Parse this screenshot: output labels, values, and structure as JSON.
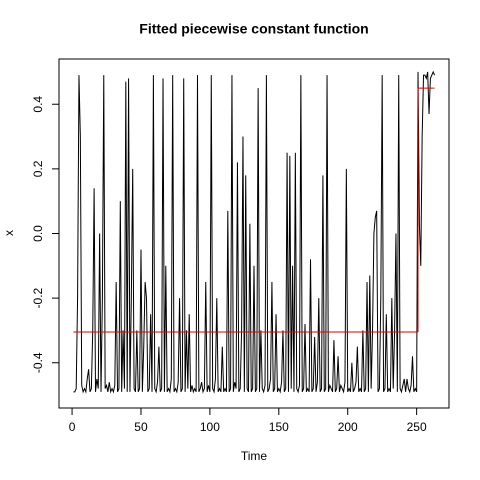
{
  "chart_data": {
    "type": "line",
    "title": "Fitted piecewise constant function",
    "xlabel": "Time",
    "ylabel": "x",
    "x": [
      1,
      2,
      3,
      4,
      5,
      6,
      7,
      8,
      9,
      10,
      11,
      12,
      13,
      14,
      15,
      16,
      17,
      18,
      19,
      20,
      21,
      22,
      23,
      24,
      25,
      26,
      27,
      28,
      29,
      30,
      31,
      32,
      33,
      34,
      35,
      36,
      37,
      38,
      39,
      40,
      41,
      42,
      43,
      44,
      45,
      46,
      47,
      48,
      49,
      50,
      51,
      52,
      53,
      54,
      55,
      56,
      57,
      58,
      59,
      60,
      61,
      62,
      63,
      64,
      65,
      66,
      67,
      68,
      69,
      70,
      71,
      72,
      73,
      74,
      75,
      76,
      77,
      78,
      79,
      80,
      81,
      82,
      83,
      84,
      85,
      86,
      87,
      88,
      89,
      90,
      91,
      92,
      93,
      94,
      95,
      96,
      97,
      98,
      99,
      100,
      101,
      102,
      103,
      104,
      105,
      106,
      107,
      108,
      109,
      110,
      111,
      112,
      113,
      114,
      115,
      116,
      117,
      118,
      119,
      120,
      121,
      122,
      123,
      124,
      125,
      126,
      127,
      128,
      129,
      130,
      131,
      132,
      133,
      134,
      135,
      136,
      137,
      138,
      139,
      140,
      141,
      142,
      143,
      144,
      145,
      146,
      147,
      148,
      149,
      150,
      151,
      152,
      153,
      154,
      155,
      156,
      157,
      158,
      159,
      160,
      161,
      162,
      163,
      164,
      165,
      166,
      167,
      168,
      169,
      170,
      171,
      172,
      173,
      174,
      175,
      176,
      177,
      178,
      179,
      180,
      181,
      182,
      183,
      184,
      185,
      186,
      187,
      188,
      189,
      190,
      191,
      192,
      193,
      194,
      195,
      196,
      197,
      198,
      199,
      200,
      201,
      202,
      203,
      204,
      205,
      206,
      207,
      208,
      209,
      210,
      211,
      212,
      213,
      214,
      215,
      216,
      217,
      218,
      219,
      220,
      221,
      222,
      223,
      224,
      225,
      226,
      227,
      228,
      229,
      230,
      231,
      232,
      233,
      234,
      235,
      236,
      237,
      238,
      239,
      240,
      241,
      242,
      243,
      244,
      245,
      246,
      247,
      248,
      249,
      250,
      251,
      252,
      253,
      254,
      255,
      256,
      257,
      258,
      259,
      260,
      261,
      262,
      263
    ],
    "series": [
      {
        "color": "#000000",
        "values": [
          -0.49,
          -0.49,
          -0.48,
          -0.2,
          0.49,
          0.3,
          -0.47,
          -0.49,
          -0.48,
          -0.49,
          -0.45,
          -0.42,
          -0.49,
          -0.48,
          -0.3,
          0.14,
          -0.49,
          -0.45,
          -0.48,
          0.0,
          -0.49,
          -0.2,
          0.49,
          -0.48,
          -0.47,
          -0.49,
          -0.46,
          -0.49,
          -0.48,
          -0.49,
          -0.47,
          -0.15,
          -0.49,
          -0.48,
          0.1,
          -0.49,
          -0.3,
          -0.48,
          0.47,
          -0.49,
          0.48,
          -0.49,
          -0.2,
          0.2,
          -0.48,
          -0.49,
          -0.3,
          -0.49,
          -0.48,
          -0.05,
          -0.49,
          -0.35,
          -0.15,
          -0.2,
          -0.49,
          -0.48,
          -0.25,
          -0.49,
          0.49,
          -0.48,
          -0.49,
          -0.46,
          -0.35,
          -0.49,
          -0.48,
          0.48,
          -0.49,
          -0.1,
          -0.49,
          -0.48,
          -0.49,
          -0.45,
          0.49,
          -0.49,
          -0.48,
          -0.49,
          -0.46,
          -0.2,
          -0.49,
          -0.48,
          0.48,
          -0.49,
          -0.3,
          -0.48,
          -0.25,
          -0.49,
          -0.47,
          -0.49,
          -0.48,
          -0.49,
          0.49,
          -0.49,
          -0.48,
          -0.46,
          -0.49,
          -0.48,
          -0.15,
          -0.49,
          -0.47,
          -0.49,
          0.49,
          -0.48,
          -0.49,
          -0.45,
          -0.2,
          -0.49,
          -0.48,
          -0.49,
          -0.35,
          -0.49,
          -0.48,
          -0.49,
          0.07,
          -0.49,
          -0.48,
          0.49,
          -0.49,
          -0.46,
          -0.48,
          0.22,
          -0.49,
          -0.48,
          -0.3,
          0.3,
          -0.49,
          0.18,
          -0.48,
          -0.49,
          0.03,
          -0.49,
          -0.48,
          -0.1,
          -0.49,
          -0.48,
          0.45,
          -0.49,
          -0.3,
          -0.48,
          -0.49,
          -0.47,
          0.49,
          -0.49,
          -0.48,
          -0.45,
          -0.15,
          -0.49,
          -0.48,
          -0.25,
          -0.49,
          -0.48,
          -0.49,
          -0.46,
          -0.3,
          -0.49,
          -0.48,
          0.25,
          -0.49,
          0.24,
          -0.48,
          -0.1,
          -0.49,
          0.25,
          -0.48,
          -0.49,
          -0.47,
          0.49,
          -0.49,
          -0.48,
          -0.28,
          -0.49,
          -0.48,
          -0.49,
          -0.08,
          -0.49,
          -0.48,
          -0.32,
          -0.49,
          -0.46,
          -0.2,
          -0.49,
          -0.48,
          0.18,
          -0.49,
          -0.48,
          0.49,
          -0.49,
          -0.47,
          -0.48,
          -0.49,
          -0.33,
          -0.49,
          -0.48,
          -0.38,
          -0.49,
          -0.47,
          -0.48,
          -0.49,
          -0.46,
          0.2,
          -0.49,
          -0.48,
          -0.49,
          -0.4,
          -0.49,
          -0.48,
          -0.46,
          -0.35,
          -0.49,
          -0.48,
          -0.49,
          -0.3,
          -0.49,
          -0.48,
          -0.15,
          -0.49,
          -0.13,
          -0.48,
          -0.3,
          0.0,
          0.05,
          0.07,
          -0.49,
          -0.48,
          -0.2,
          0.49,
          -0.49,
          -0.48,
          -0.25,
          -0.49,
          -0.48,
          -0.49,
          -0.2,
          -0.48,
          -0.3,
          0.0,
          -0.49,
          0.49,
          -0.48,
          -0.49,
          -0.47,
          -0.45,
          -0.49,
          -0.45,
          -0.48,
          -0.49,
          -0.47,
          -0.38,
          -0.49,
          -0.48,
          -0.49,
          0.5,
          0.03,
          -0.1,
          0.3,
          0.49,
          0.49,
          0.48,
          0.5,
          0.37,
          0.48,
          0.49,
          0.5,
          0.49
        ]
      }
    ],
    "segments": {
      "color": "#dd0000",
      "items": [
        {
          "start": 1,
          "end": 251,
          "value": -0.305
        },
        {
          "start": 251,
          "end": 263,
          "value": 0.45
        }
      ]
    },
    "xlim": [
      -9.48,
      273.48
    ],
    "ylim": [
      -0.54,
      0.54
    ],
    "xticks": [
      0,
      50,
      100,
      150,
      200,
      250
    ],
    "yticks": [
      -0.4,
      -0.2,
      {
        "value": 0,
        "label": "0.0"
      },
      0.2,
      0.4
    ]
  }
}
